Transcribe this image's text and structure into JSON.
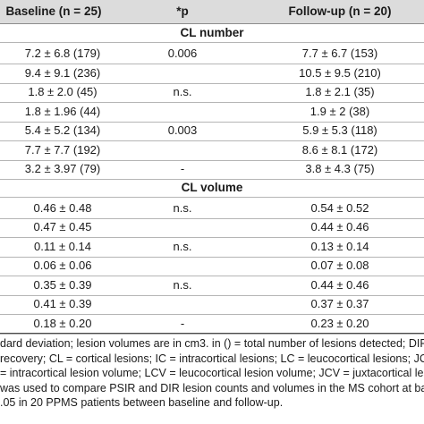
{
  "header": {
    "baseline": "Baseline (n = 25)",
    "p": "*p",
    "followup": "Follow-up (n = 20)"
  },
  "sections": {
    "number": {
      "title": "CL number",
      "rows": [
        {
          "baseline": "7.2 ± 6.8 (179)",
          "p": "0.006",
          "followup": "7.7 ± 6.7 (153)"
        },
        {
          "baseline": "9.4 ± 9.1 (236)",
          "p": "",
          "followup": "10.5 ± 9.5 (210)"
        },
        {
          "baseline": "1.8 ± 2.0 (45)",
          "p": "n.s.",
          "followup": "1.8 ± 2.1 (35)"
        },
        {
          "baseline": "1.8 ± 1.96 (44)",
          "p": "",
          "followup": "1.9 ± 2 (38)"
        },
        {
          "baseline": "5.4 ± 5.2 (134)",
          "p": "0.003",
          "followup": "5.9 ± 5.3 (118)"
        },
        {
          "baseline": "7.7 ± 7.7 (192)",
          "p": "",
          "followup": "8.6 ± 8.1 (172)"
        },
        {
          "baseline": "3.2 ± 3.97 (79)",
          "p": "-",
          "followup": "3.8 ± 4.3 (75)"
        }
      ]
    },
    "volume": {
      "title": "CL volume",
      "rows": [
        {
          "baseline": "0.46 ± 0.48",
          "p": "n.s.",
          "followup": "0.54 ± 0.52"
        },
        {
          "baseline": "0.47 ± 0.45",
          "p": "",
          "followup": "0.44 ± 0.46"
        },
        {
          "baseline": "0.11 ± 0.14",
          "p": "n.s.",
          "followup": "0.13 ± 0.14"
        },
        {
          "baseline": "0.06 ± 0.06",
          "p": "",
          "followup": "0.07 ± 0.08"
        },
        {
          "baseline": "0.35 ± 0.39",
          "p": "n.s.",
          "followup": "0.44 ± 0.46"
        },
        {
          "baseline": "0.41 ± 0.39",
          "p": "",
          "followup": "0.37 ± 0.37"
        },
        {
          "baseline": "0.18 ± 0.20",
          "p": "-",
          "followup": "0.23 ± 0.20"
        }
      ]
    }
  },
  "footnote": [
    "dard deviation; lesion volumes are in cm3. in () = total number of lesions detected; DIR",
    "recovery; CL = cortical lesions; IC = intracortical lesions; LC = leucocortical lesions; JC",
    "= intracortical lesion volume; LCV = leucocortical lesion volume; JCV = juxtacortical lesio",
    "was used to compare PSIR and DIR lesion counts and volumes in the MS cohort at ba",
    ".05 in 20 PPMS patients between baseline and follow-up."
  ]
}
